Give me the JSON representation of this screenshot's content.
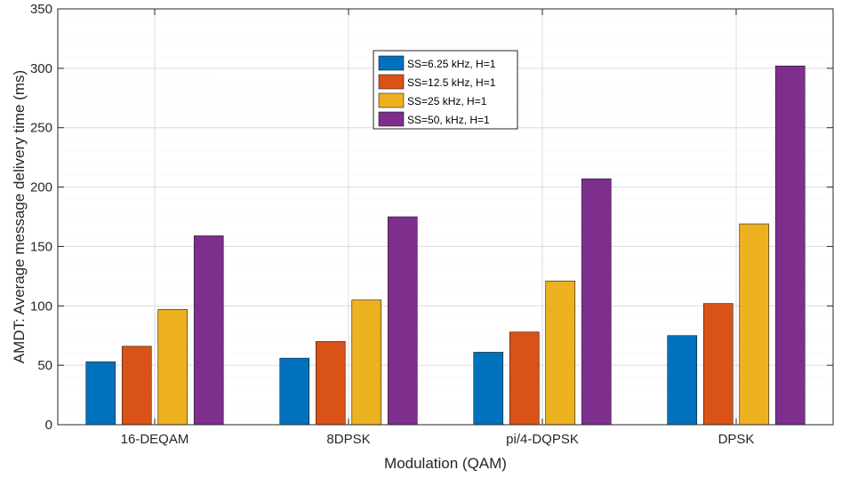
{
  "chart_data": {
    "type": "bar",
    "title": "",
    "xlabel": "Modulation (QAM)",
    "ylabel": "AMDT: Average message delivery time (ms)",
    "categories": [
      "16-DEQAM",
      "8DPSK",
      "pi/4-DQPSK",
      "DPSK"
    ],
    "ylim": [
      0,
      350
    ],
    "yticks": [
      0,
      50,
      100,
      150,
      200,
      250,
      300,
      350
    ],
    "grid": true,
    "minor_grid": true,
    "legend_position": "top-center",
    "series": [
      {
        "name": "SS=6.25 kHz, H=1",
        "color": "#0072BD",
        "values": [
          53,
          56,
          61,
          75
        ]
      },
      {
        "name": "SS=12.5 kHz, H=1",
        "color": "#D95319",
        "values": [
          66,
          70,
          78,
          102
        ]
      },
      {
        "name": "SS=25 kHz, H=1",
        "color": "#EDB120",
        "values": [
          97,
          105,
          121,
          169
        ]
      },
      {
        "name": "SS=50, kHz, H=1",
        "color": "#7E2F8E",
        "values": [
          159,
          175,
          207,
          302
        ]
      }
    ]
  }
}
